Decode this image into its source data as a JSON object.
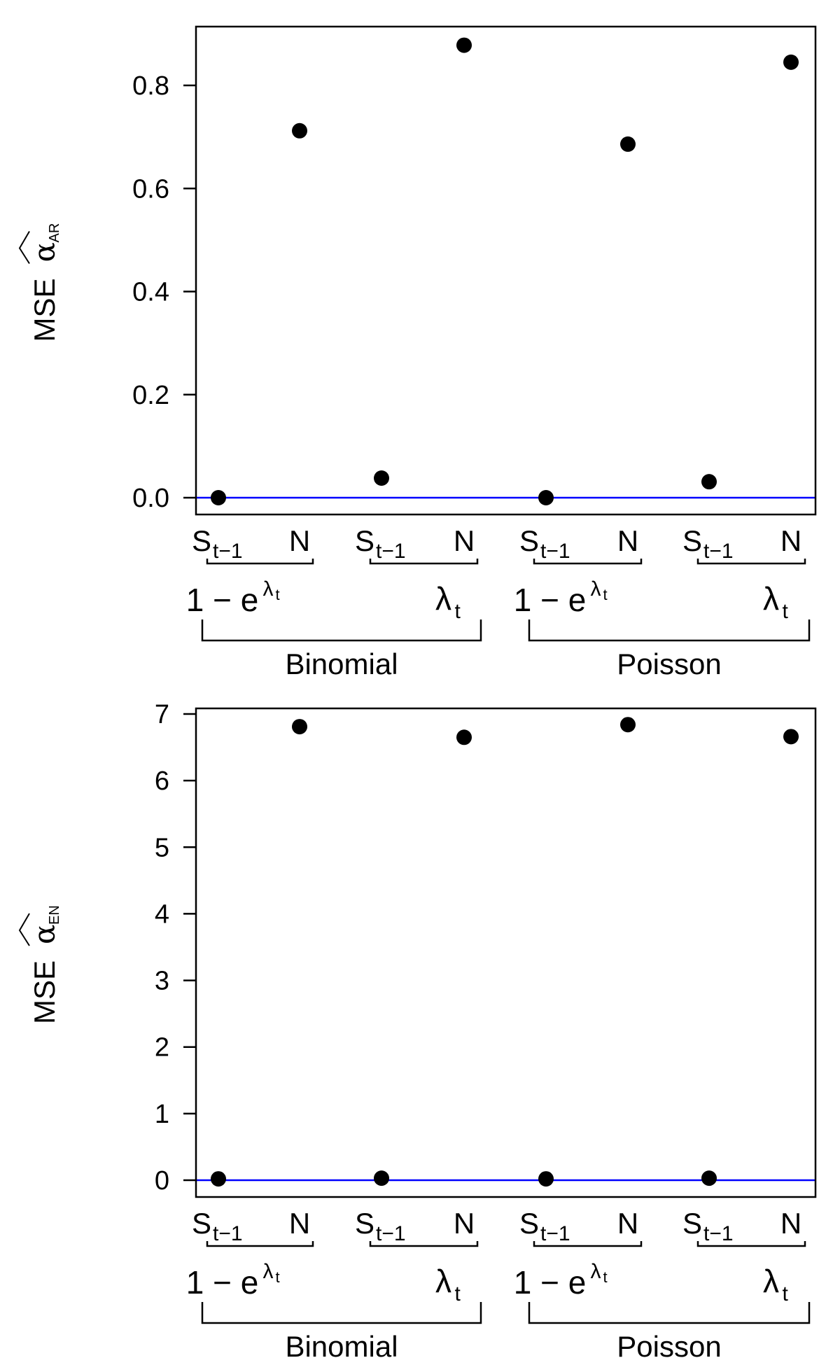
{
  "chart_data": [
    {
      "type": "scatter",
      "ylabel": {
        "prefix": "MSE",
        "symbol": "α",
        "subscript": "AR"
      },
      "ylim": [
        0,
        0.9
      ],
      "yticks": [
        "0.0",
        "0.2",
        "0.4",
        "0.6",
        "0.8"
      ],
      "ytick_values": [
        0,
        0.2,
        0.4,
        0.6,
        0.8
      ],
      "reference_line": {
        "y": 0,
        "color": "#0000ff"
      },
      "categories": [
        {
          "main": "S",
          "sub": "t−1"
        },
        {
          "main": "N",
          "sub": ""
        },
        {
          "main": "S",
          "sub": "t−1"
        },
        {
          "main": "N",
          "sub": ""
        },
        {
          "main": "S",
          "sub": "t−1"
        },
        {
          "main": "N",
          "sub": ""
        },
        {
          "main": "S",
          "sub": "t−1"
        },
        {
          "main": "N",
          "sub": ""
        }
      ],
      "groups": [
        {
          "main": "1 − e",
          "sup": "λ",
          "sup_sub": "t"
        },
        {
          "main": "λ",
          "sub": "t"
        },
        {
          "main": "1 − e",
          "sup": "λ",
          "sup_sub": "t"
        },
        {
          "main": "λ",
          "sub": "t"
        }
      ],
      "families": [
        "Binomial",
        "Poisson"
      ],
      "values": [
        0.0,
        0.712,
        0.038,
        0.878,
        0.0,
        0.686,
        0.031,
        0.845
      ]
    },
    {
      "type": "scatter",
      "ylabel": {
        "prefix": "MSE",
        "symbol": "α",
        "subscript": "EN"
      },
      "ylim": [
        0,
        7.1
      ],
      "yticks": [
        "0",
        "1",
        "2",
        "3",
        "4",
        "5",
        "6",
        "7"
      ],
      "ytick_values": [
        0,
        1,
        2,
        3,
        4,
        5,
        6,
        7
      ],
      "reference_line": {
        "y": 0,
        "color": "#0000ff"
      },
      "categories": [
        {
          "main": "S",
          "sub": "t−1"
        },
        {
          "main": "N",
          "sub": ""
        },
        {
          "main": "S",
          "sub": "t−1"
        },
        {
          "main": "N",
          "sub": ""
        },
        {
          "main": "S",
          "sub": "t−1"
        },
        {
          "main": "N",
          "sub": ""
        },
        {
          "main": "S",
          "sub": "t−1"
        },
        {
          "main": "N",
          "sub": ""
        }
      ],
      "groups": [
        {
          "main": "1 − e",
          "sup": "λ",
          "sup_sub": "t"
        },
        {
          "main": "λ",
          "sub": "t"
        },
        {
          "main": "1 − e",
          "sup": "λ",
          "sup_sub": "t"
        },
        {
          "main": "λ",
          "sub": "t"
        }
      ],
      "families": [
        "Binomial",
        "Poisson"
      ],
      "values": [
        0.02,
        6.81,
        0.03,
        6.65,
        0.02,
        6.84,
        0.03,
        6.66
      ]
    }
  ]
}
